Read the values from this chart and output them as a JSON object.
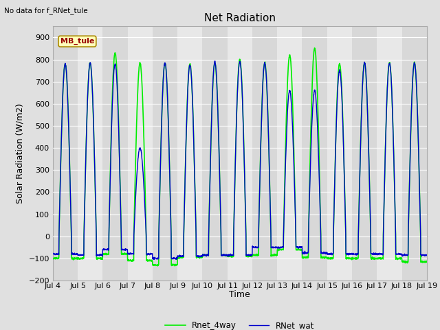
{
  "title": "Net Radiation",
  "xlabel": "Time",
  "ylabel": "Solar Radiation (W/m2)",
  "note": "No data for f_RNet_tule",
  "mb_tule_label": "MB_tule",
  "ylim": [
    -200,
    950
  ],
  "yticks": [
    -200,
    -100,
    0,
    100,
    200,
    300,
    400,
    500,
    600,
    700,
    800,
    900
  ],
  "xtick_labels": [
    "Jul 4",
    "Jul 5",
    "Jul 6",
    "Jul 7",
    "Jul 8",
    "Jul 9",
    "Jul 10",
    "Jul 11",
    "Jul 12",
    "Jul 13",
    "Jul 14",
    "Jul 15",
    "Jul 16",
    "Jul 17",
    "Jul 18",
    "Jul 19"
  ],
  "legend_labels": [
    "RNet_wat",
    "Rnet_4way"
  ],
  "line_color_wat": "#0000cc",
  "line_color_4way": "#00ee00",
  "fig_bg_color": "#e0e0e0",
  "plot_bg_light": "#e8e8e8",
  "plot_bg_dark": "#d8d8d8",
  "grid_color": "#ffffff",
  "mb_tule_bg": "#ffffbb",
  "mb_tule_fg": "#990000",
  "mb_tule_border": "#aa8800",
  "title_fontsize": 11,
  "label_fontsize": 9,
  "tick_fontsize": 8,
  "days": 15,
  "points_per_day": 144,
  "start_day": 4,
  "wat_peaks": [
    780,
    785,
    780,
    400,
    785,
    775,
    790,
    790,
    785,
    660,
    660,
    750,
    785,
    785,
    785
  ],
  "wat_nights": [
    -80,
    -85,
    -60,
    -80,
    -100,
    -90,
    -85,
    -85,
    -50,
    -50,
    -75,
    -80,
    -80,
    -80,
    -85
  ],
  "way_peaks": [
    780,
    785,
    830,
    785,
    785,
    780,
    785,
    800,
    785,
    820,
    850,
    780,
    785,
    785,
    785
  ],
  "way_nights": [
    -100,
    -100,
    -80,
    -110,
    -130,
    -95,
    -85,
    -90,
    -85,
    -60,
    -95,
    -100,
    -100,
    -100,
    -115
  ]
}
